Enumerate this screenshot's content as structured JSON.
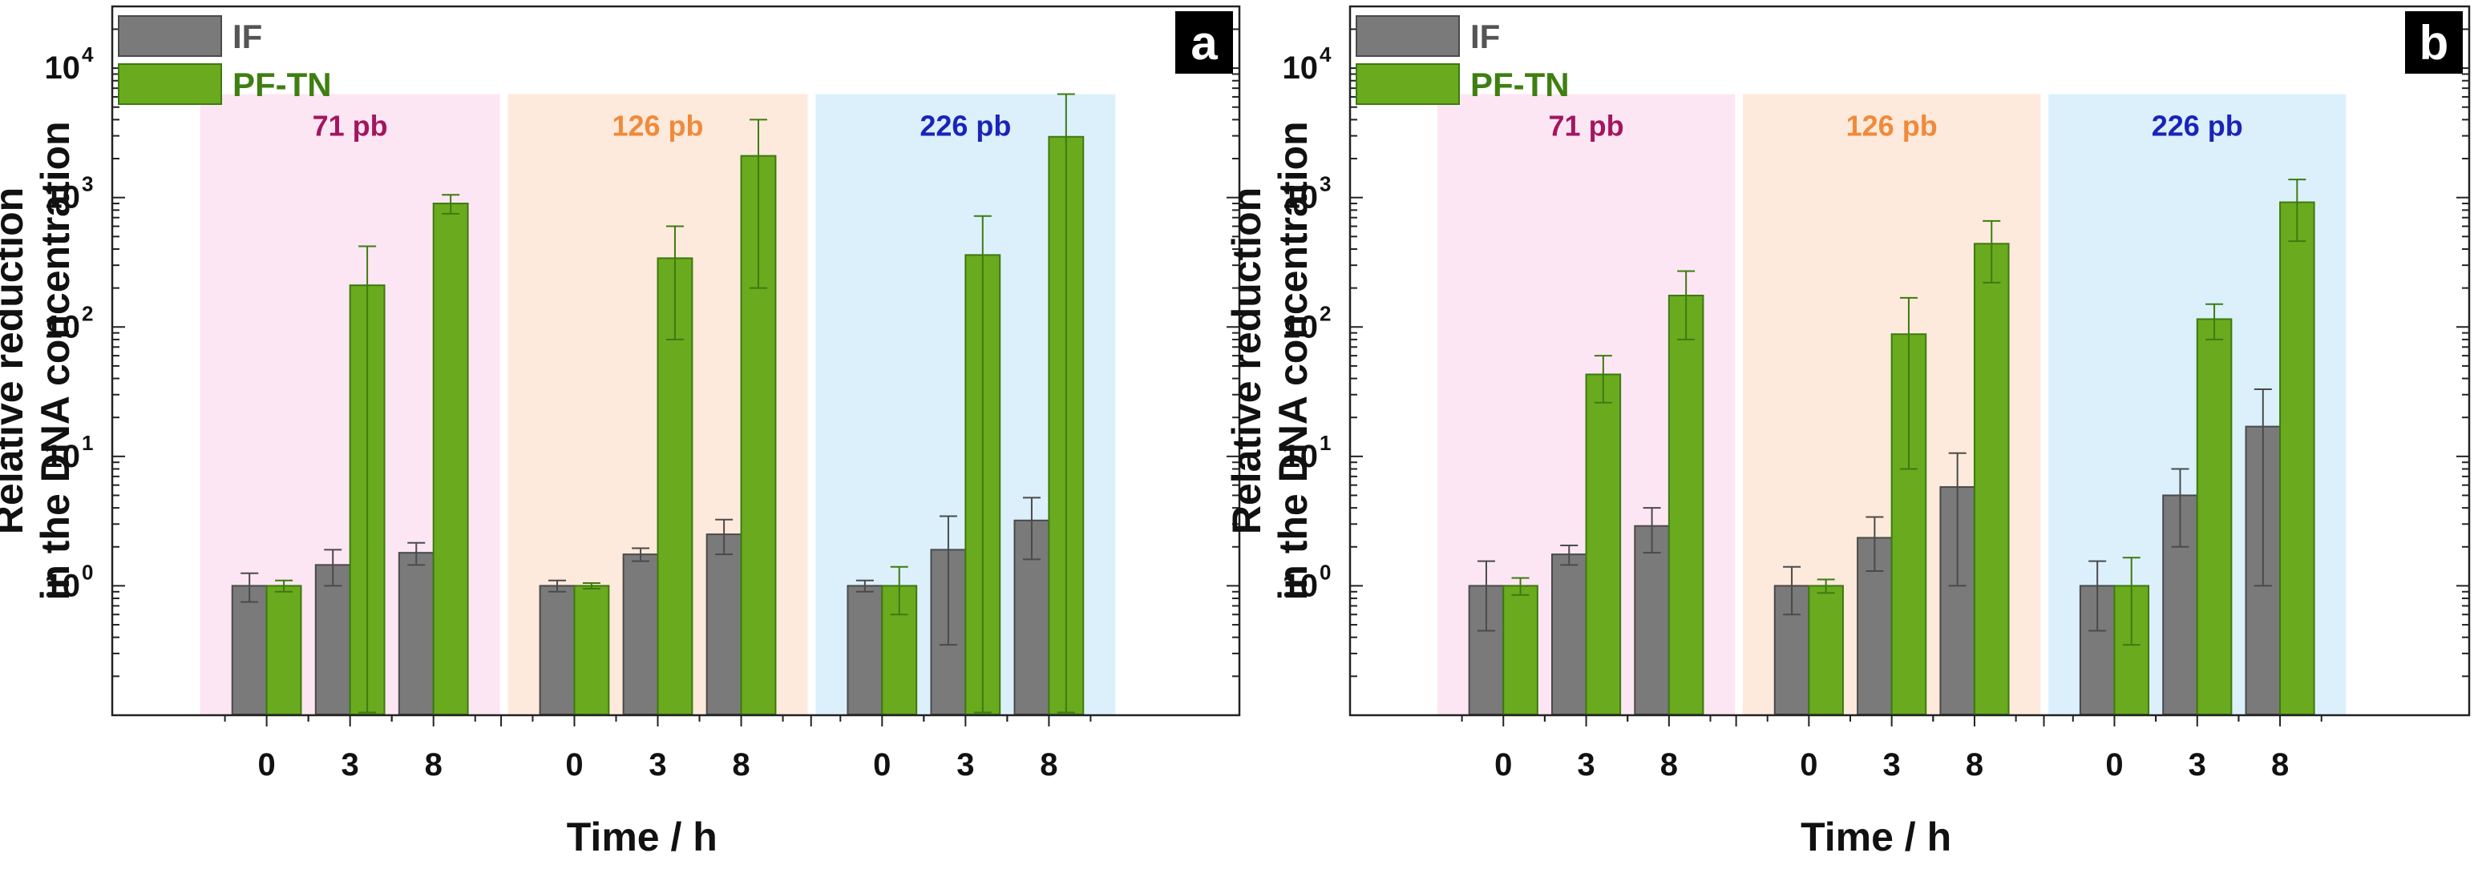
{
  "chart_data": [
    {
      "type": "bar",
      "panel_label": "a",
      "scale": "log",
      "ylabel_lines": [
        "Relative reduction",
        "in the DNA concentration"
      ],
      "xlabel": "Time / h",
      "ylim": [
        0.1,
        30000
      ],
      "y_ticks": [
        {
          "base": "10",
          "exp": "0"
        },
        {
          "base": "10",
          "exp": "1"
        },
        {
          "base": "10",
          "exp": "2"
        },
        {
          "base": "10",
          "exp": "3"
        },
        {
          "base": "10",
          "exp": "4"
        }
      ],
      "legend_position": "top-left",
      "groups": [
        {
          "label": "71 pb",
          "label_color": "#a3165f",
          "bg_color": "#fde6f3",
          "categories": [
            "0",
            "3",
            "8"
          ]
        },
        {
          "label": "126 pb",
          "label_color": "#f08a3a",
          "bg_color": "#fdeadc",
          "categories": [
            "0",
            "3",
            "8"
          ]
        },
        {
          "label": "226 pb",
          "label_color": "#1a24b8",
          "bg_color": "#dcf0fc",
          "categories": [
            "0",
            "3",
            "8"
          ]
        }
      ],
      "series": [
        {
          "name": "IF",
          "color": "#7a7a7a",
          "edge": "#4a4a4a",
          "values": [
            [
              1.0,
              1.45,
              1.8
            ],
            [
              1.0,
              1.75,
              2.5
            ],
            [
              1.0,
              1.9,
              3.2
            ]
          ],
          "errors": [
            [
              0.25,
              0.45,
              0.35
            ],
            [
              0.1,
              0.2,
              0.75
            ],
            [
              0.1,
              1.55,
              1.6
            ]
          ]
        },
        {
          "name": "PF-TN",
          "color": "#6aaa1e",
          "edge": "#3d7a10",
          "values": [
            [
              1.0,
              210,
              900
            ],
            [
              1.0,
              340,
              2100
            ],
            [
              1.0,
              360,
              2950
            ]
          ],
          "errors": [
            [
              0.1,
              210,
              150
            ],
            [
              0.05,
              260,
              1900
            ],
            [
              0.4,
              360,
              3350
            ]
          ]
        }
      ]
    },
    {
      "type": "bar",
      "panel_label": "b",
      "scale": "log",
      "ylabel_lines": [
        "Relative reduction",
        "in the DNA concentration"
      ],
      "xlabel": "Time / h",
      "ylim": [
        0.1,
        30000
      ],
      "y_ticks": [
        {
          "base": "10",
          "exp": "0"
        },
        {
          "base": "10",
          "exp": "1"
        },
        {
          "base": "10",
          "exp": "2"
        },
        {
          "base": "10",
          "exp": "3"
        },
        {
          "base": "10",
          "exp": "4"
        }
      ],
      "legend_position": "top-left",
      "groups": [
        {
          "label": "71 pb",
          "label_color": "#a3165f",
          "bg_color": "#fde6f3",
          "categories": [
            "0",
            "3",
            "8"
          ]
        },
        {
          "label": "126 pb",
          "label_color": "#f08a3a",
          "bg_color": "#fdeadc",
          "categories": [
            "0",
            "3",
            "8"
          ]
        },
        {
          "label": "226 pb",
          "label_color": "#1a24b8",
          "bg_color": "#dcf0fc",
          "categories": [
            "0",
            "3",
            "8"
          ]
        }
      ],
      "series": [
        {
          "name": "IF",
          "color": "#7a7a7a",
          "edge": "#4a4a4a",
          "values": [
            [
              1.0,
              1.75,
              2.9
            ],
            [
              1.0,
              2.35,
              5.8
            ],
            [
              1.0,
              5.0,
              17
            ]
          ],
          "errors": [
            [
              0.55,
              0.3,
              1.1
            ],
            [
              0.4,
              1.05,
              4.8
            ],
            [
              0.55,
              3.0,
              16
            ]
          ]
        },
        {
          "name": "PF-TN",
          "color": "#6aaa1e",
          "edge": "#3d7a10",
          "values": [
            [
              1.0,
              43,
              175
            ],
            [
              1.0,
              88,
              440
            ],
            [
              1.0,
              115,
              920
            ]
          ],
          "errors": [
            [
              0.15,
              17,
              95
            ],
            [
              0.12,
              80,
              220
            ],
            [
              0.65,
              35,
              460
            ]
          ]
        }
      ]
    }
  ]
}
